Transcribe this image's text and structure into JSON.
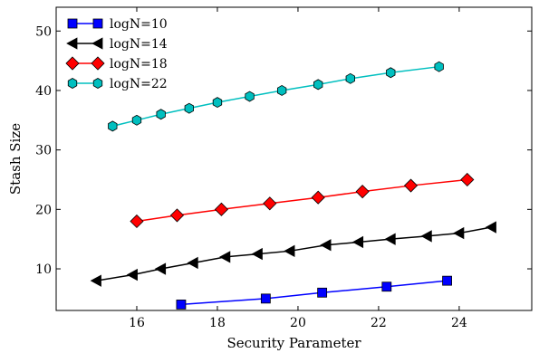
{
  "chart_data": {
    "type": "line",
    "title": "",
    "xlabel": "Security Parameter",
    "ylabel": "Stash Size",
    "xlim": [
      14.0,
      25.8
    ],
    "ylim": [
      3,
      54
    ],
    "xticks": [
      16,
      18,
      20,
      22,
      24
    ],
    "yticks": [
      10,
      20,
      30,
      40,
      50
    ],
    "grid": false,
    "legend_position": "top-left",
    "series": [
      {
        "name": "logN=10",
        "color": "#0000ff",
        "marker": "square",
        "x": [
          17.1,
          19.2,
          20.6,
          22.2,
          23.7
        ],
        "y": [
          4,
          5,
          6,
          7,
          8
        ]
      },
      {
        "name": "logN=14",
        "color": "#000000",
        "marker": "triangle-left",
        "x": [
          15.0,
          15.9,
          16.6,
          17.4,
          18.2,
          19.0,
          19.8,
          20.7,
          21.5,
          22.3,
          23.2,
          24.0,
          24.8
        ],
        "y": [
          8,
          9,
          10,
          11,
          12,
          12.5,
          13,
          14,
          14.5,
          15,
          15.5,
          16,
          17
        ]
      },
      {
        "name": "logN=18",
        "color": "#ff0000",
        "marker": "diamond",
        "x": [
          16.0,
          17.0,
          18.1,
          19.3,
          20.5,
          21.6,
          22.8,
          24.2
        ],
        "y": [
          18,
          19,
          20,
          21,
          22,
          23,
          24,
          25
        ]
      },
      {
        "name": "logN=22",
        "color": "#00bfbf",
        "marker": "hexagon",
        "x": [
          15.4,
          16.0,
          16.6,
          17.3,
          18.0,
          18.8,
          19.6,
          20.5,
          21.3,
          22.3,
          23.5
        ],
        "y": [
          34,
          35,
          36,
          37,
          38,
          39,
          40,
          41,
          42,
          43,
          44
        ]
      }
    ]
  }
}
